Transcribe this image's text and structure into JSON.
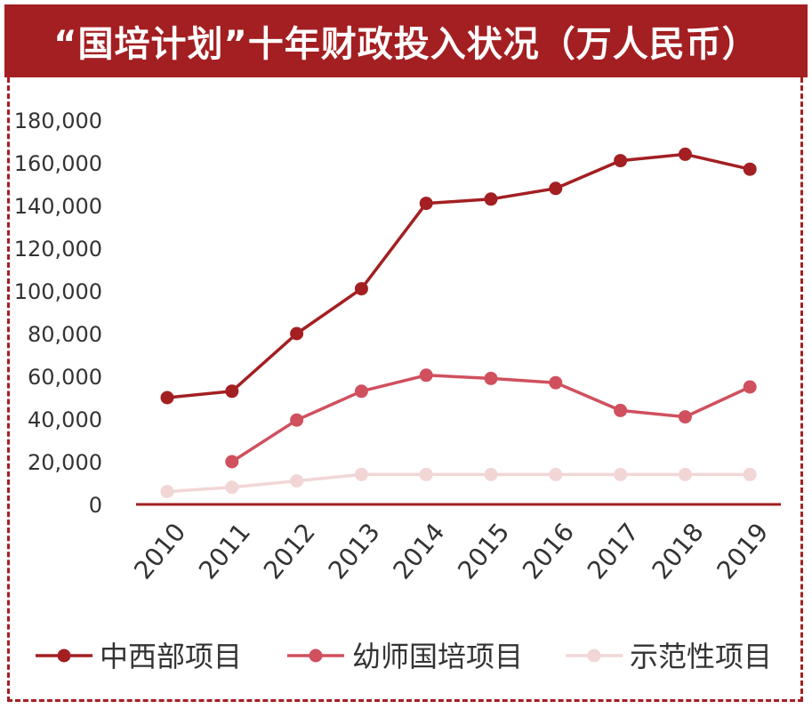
{
  "title": "“国培计划”十年财政投入状况（万人民币）",
  "colors": {
    "title_bg": "#a31f22",
    "axis": "#a31f22",
    "border": "#a31f22"
  },
  "chart_data": {
    "type": "line",
    "title": "“国培计划”十年财政投入状况（万人民币）",
    "xlabel": "",
    "ylabel": "",
    "categories": [
      "2010",
      "2011",
      "2012",
      "2013",
      "2014",
      "2015",
      "2016",
      "2017",
      "2018",
      "2019"
    ],
    "ylim": [
      0,
      180000
    ],
    "yticks": [
      0,
      20000,
      40000,
      60000,
      80000,
      100000,
      120000,
      140000,
      160000,
      180000
    ],
    "ytick_labels": [
      "0",
      "20,000",
      "40,000",
      "60,000",
      "80,000",
      "100,000",
      "120,000",
      "140,000",
      "160,000",
      "180,000"
    ],
    "grid": false,
    "legend_position": "bottom",
    "series": [
      {
        "name": "中西部项目",
        "color": "#a31f22",
        "values": [
          50000,
          53000,
          80000,
          101000,
          141000,
          143000,
          148000,
          161000,
          164000,
          157000
        ]
      },
      {
        "name": "幼师国培项目",
        "color": "#d0505e",
        "values": [
          null,
          20000,
          39500,
          53000,
          60500,
          59000,
          57000,
          44000,
          41000,
          55000
        ]
      },
      {
        "name": "示范性项目",
        "color": "#f2d6d6",
        "values": [
          6000,
          8000,
          11000,
          14000,
          14000,
          14000,
          14000,
          14000,
          14000,
          14000
        ]
      }
    ]
  }
}
